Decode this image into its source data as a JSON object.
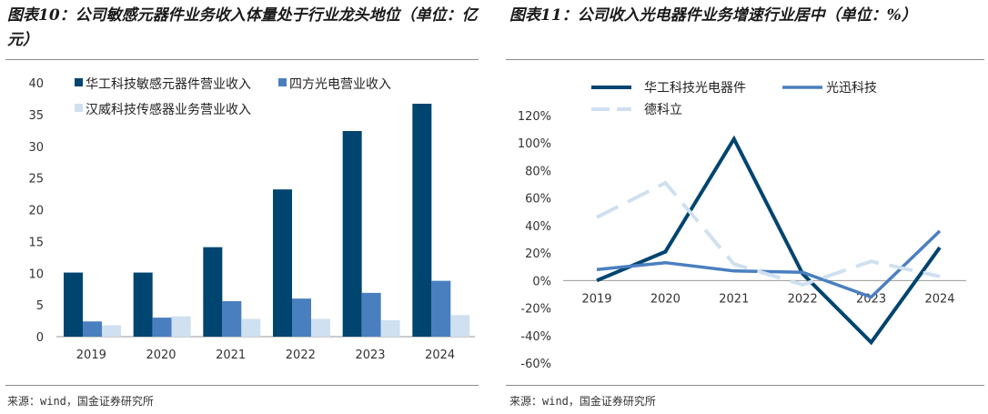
{
  "left": {
    "title": "图表10：公司敏感元器件业务收入体量处于行业龙头地位（单位：亿元）",
    "source": "来源：wind，国金证券研究所"
  },
  "right": {
    "title": "图表11：公司收入光电器件业务增速行业居中（单位：%）",
    "source": "来源：wind，国金证券研究所"
  },
  "colors": {
    "dark": "#004470",
    "mid": "#4a7fbf",
    "light": "#cfe0f0"
  },
  "chart_data": [
    {
      "type": "bar",
      "categories": [
        "2019",
        "2020",
        "2021",
        "2022",
        "2023",
        "2024"
      ],
      "ylim": [
        0,
        40
      ],
      "yticks": [
        "0",
        "5",
        "10",
        "15",
        "20",
        "25",
        "30",
        "35",
        "40"
      ],
      "legend_position": "top-left",
      "series": [
        {
          "name": "华工科技敏感元器件营业收入",
          "values": [
            10.1,
            10.1,
            14.1,
            23.2,
            32.4,
            36.7
          ]
        },
        {
          "name": "四方光电营业收入",
          "values": [
            2.4,
            3.0,
            5.6,
            6.0,
            6.9,
            8.8
          ]
        },
        {
          "name": "汉威科技传感器业务营业收入",
          "values": [
            1.8,
            3.2,
            2.8,
            2.8,
            2.6,
            3.4
          ]
        }
      ]
    },
    {
      "type": "line",
      "categories": [
        "2019",
        "2020",
        "2021",
        "2022",
        "2023",
        "2024"
      ],
      "ylim": [
        -60,
        120
      ],
      "yticks": [
        "120%",
        "100%",
        "80%",
        "60%",
        "40%",
        "20%",
        "0%",
        "-20%",
        "-40%",
        "-60%"
      ],
      "legend_position": "top",
      "series": [
        {
          "name": "华工科技光电器件",
          "values": [
            0,
            21,
            103,
            5,
            -45,
            24
          ]
        },
        {
          "name": "光迅科技",
          "values": [
            8,
            13,
            7,
            6,
            -12,
            36
          ]
        },
        {
          "name": "德科立",
          "values": [
            46,
            71,
            12,
            -3,
            14,
            3
          ]
        }
      ]
    }
  ]
}
